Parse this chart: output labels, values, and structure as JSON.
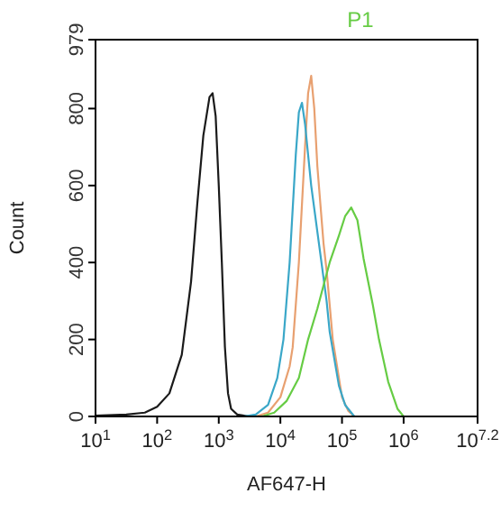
{
  "chart_data": {
    "type": "line",
    "title": "P1",
    "xlabel": "AF647-H",
    "ylabel": "Count",
    "log": "x",
    "xlim": [
      10,
      15848932
    ],
    "xticks": [
      {
        "value": 10,
        "label": "10$^{1}$"
      },
      {
        "value": 100,
        "label": "10$^{2}$"
      },
      {
        "value": 1000,
        "label": "10$^{3}$"
      },
      {
        "value": 10000,
        "label": "10$^{4}$"
      },
      {
        "value": 100000,
        "label": "10$^{5}$"
      },
      {
        "value": 1000000,
        "label": "10$^{6}$"
      },
      {
        "value": 15848932,
        "label": "10$^{7.2}$"
      }
    ],
    "ylim": [
      0,
      979
    ],
    "yticks": [
      0,
      200,
      400,
      600,
      800,
      979
    ],
    "grid": false,
    "marker": "none",
    "line_style": "solid",
    "series": [
      {
        "color": "#1a1a1a",
        "x": [
          10,
          31.6,
          63.1,
          100,
          158,
          251,
          355,
          447,
          562,
          708,
          794,
          891,
          1000,
          1122,
          1259,
          1413,
          1585,
          1995,
          3162
        ],
        "values": [
          2,
          5,
          10,
          25,
          60,
          160,
          350,
          550,
          730,
          830,
          840,
          780,
          600,
          400,
          180,
          60,
          20,
          5,
          0
        ]
      },
      {
        "color": "#e8a070",
        "x": [
          3981,
          6310,
          10000,
          14130,
          15850,
          19950,
          25120,
          28180,
          31620,
          35480,
          39810,
          50120,
          56230,
          70790,
          100000,
          125900,
          158500
        ],
        "values": [
          0,
          10,
          50,
          130,
          180,
          400,
          700,
          840,
          885,
          800,
          650,
          450,
          380,
          200,
          50,
          15,
          0
        ]
      },
      {
        "color": "#3aa7c8",
        "x": [
          2512,
          3981,
          6310,
          8913,
          11220,
          14130,
          17780,
          19950,
          22390,
          25120,
          31620,
          39810,
          44670,
          56230,
          63100,
          89130,
          112200,
          158500
        ],
        "values": [
          0,
          5,
          30,
          100,
          200,
          400,
          680,
          790,
          815,
          760,
          600,
          480,
          420,
          300,
          220,
          80,
          30,
          0
        ]
      },
      {
        "color": "#66cc44",
        "x": [
          5012,
          7943,
          12590,
          19950,
          28180,
          39810,
          50120,
          63100,
          89130,
          112200,
          141300,
          177800,
          223900,
          316200,
          398100,
          562300,
          794300,
          1000000
        ],
        "values": [
          0,
          10,
          40,
          100,
          200,
          280,
          340,
          400,
          470,
          520,
          543,
          510,
          410,
          290,
          200,
          90,
          20,
          0
        ]
      }
    ]
  }
}
